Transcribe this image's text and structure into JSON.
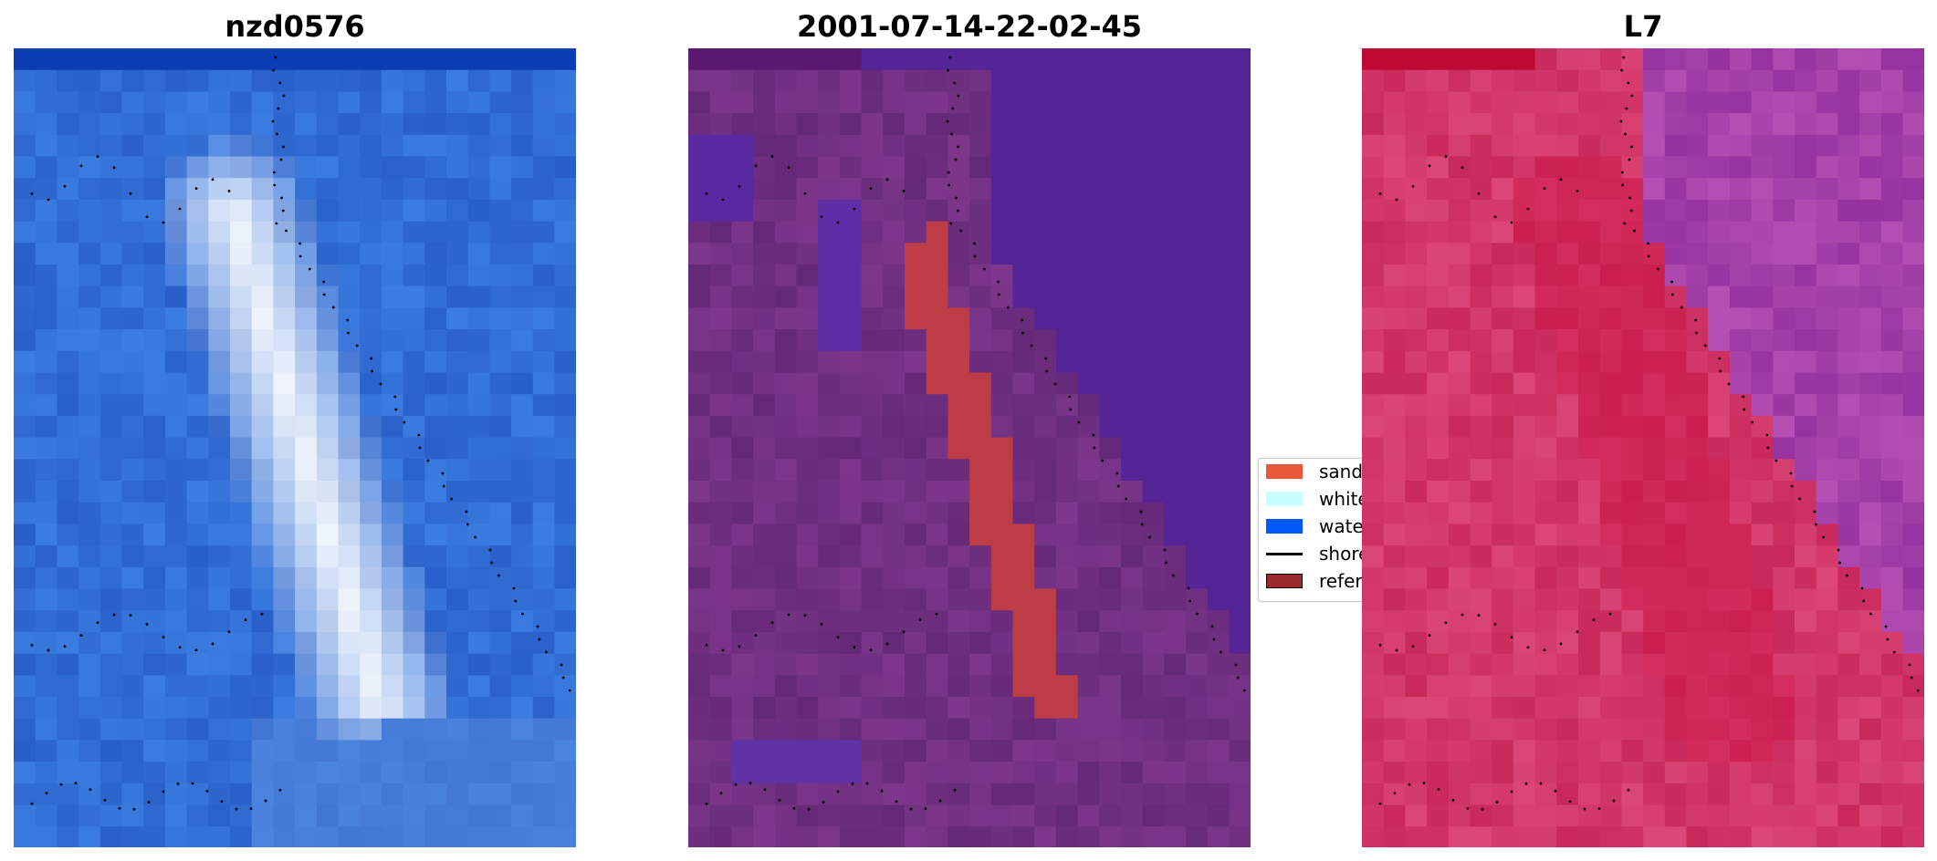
{
  "panels": [
    {
      "title": "nzd0576",
      "palette": "rgb"
    },
    {
      "title": "2001-07-14-22-02-45",
      "palette": "classified"
    },
    {
      "title": "L7",
      "palette": "mndwi"
    }
  ],
  "legend": {
    "items": [
      {
        "label": "sand",
        "color": "#e8583a",
        "kind": "patch"
      },
      {
        "label": "white-water",
        "color": "#c8fffe",
        "kind": "patch"
      },
      {
        "label": "water",
        "color": "#0059f6",
        "kind": "patch"
      },
      {
        "label": "shoreline",
        "color": "#000000",
        "kind": "line"
      },
      {
        "label": "reference shoreline",
        "color": "#9a2a2c",
        "kind": "patch"
      }
    ]
  }
}
